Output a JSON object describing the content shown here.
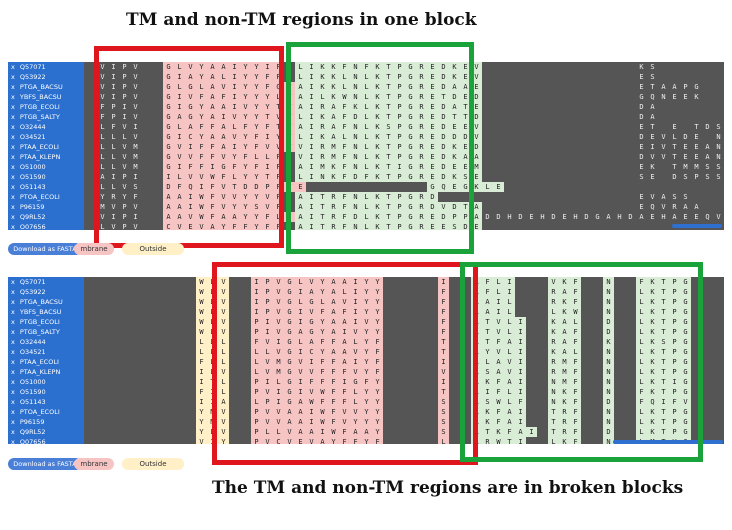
{
  "titles": {
    "top": "TM and non-TM regions in one block",
    "bottom": "The TM and non-TM regions are in broken blocks"
  },
  "accessions": [
    "Q57071",
    "Q53922",
    "PTGA_BACSU",
    "YBFS_BACSU",
    "PTGB_ECOLI",
    "PTGB_SALTY",
    "O32444",
    "O34521",
    "PTAA_ECOLI",
    "PTAA_KLEPN",
    "O51000",
    "O51590",
    "O51143",
    "PTOA_ECOLI",
    "P96159",
    "Q9RL52",
    "O07656"
  ],
  "row_marker": "x",
  "download_label": "Download as FASTA",
  "legend": {
    "membrane": "mbrane",
    "outside": "Outside"
  },
  "colors": {
    "tm_highlight": "#e0161f",
    "non_tm_highlight": "#19a33a",
    "tm_fill": "#f7c4c4",
    "outside_fill": "#d9ecd6",
    "membrane_fill": "#fff0c8",
    "name_column": "#2b6fcf"
  },
  "top_block": {
    "lead": [
      "VIPV",
      "VIPV",
      "VIPV",
      "VIPV",
      "FPIV",
      "FPIV",
      "LFVI",
      "LLLV",
      "LLVM",
      "LLVM",
      "LLVM",
      "AIPI",
      "LLVS",
      "YRYF",
      "MVPV",
      "VIPI",
      "LVPV"
    ],
    "tm": [
      "GLVYAAIYYIF",
      "GIAYALIYYFF",
      "GLGLAVIYYFGF",
      "GIVFAFIYYYLF",
      "GIGYAAIVYYTF",
      "GAGYAIVYYTVF",
      "GLAFFALFYFTF",
      "GICYAAVYFIYF",
      "GVIFFAIYFVVF",
      "GVVFFVYFLLF",
      "GIFFIGFYFIF",
      "ILVVWFLYYTF",
      "DFQIFVTDDPFFE",
      "AAIWFVVYYVF",
      "AAIWFVYYSVF",
      "AAVWFAAYYFLF",
      "CVEVAYFFYFF"
    ],
    "outside": [
      "LIKKFNFKTPGREDKEV",
      "LIKKLNLKTPGREDKEV",
      "AIKKLNLKTPGREDAAE",
      "AILKWNLKTPGRETDED",
      "AIRAFKLKTPGREDATE",
      "LIKAFDLKTPGREDTTD",
      "AIRAFNLKSPGREDEEV",
      "LIKALNLKTPGREDDDV",
      "VIRMFNLKTPGREDKED",
      "VIRMFNLKTPGREDKAA",
      "AIMKFNLKTIGREDEEM",
      "LINKFDFKTPGREDKSE",
      "GQEGKLE",
      "AITRFNLKTPGRD",
      "AITRFNLKTPGRDVDTA",
      "AITRFDLKTPGREDPPA",
      "AITRFNLKTPGREESDE"
    ],
    "tail": [
      "KS",
      "ES",
      "ETAAPG",
      "GQNEEK",
      "DA",
      "DA",
      "ET E TDS",
      "DEVLDE NTV",
      "EIVTEEANSN",
      "DVVTEEANSN",
      "EK TMMSSE",
      "SE DSPSSK",
      "",
      "EVASS",
      "EQVRAA",
      "DDHDEHDEHDGAHDAEHAEEQVRAA",
      ""
    ]
  },
  "bottom_block": {
    "lead": [
      "WLV",
      "WLV",
      "WLV",
      "WLV",
      "WLV",
      "WLV",
      "LLL",
      "LLL",
      "FLL",
      "ILV",
      "ITL",
      "FIL",
      "IIA",
      "YMV",
      "YMV",
      "YLV",
      "VIY"
    ],
    "tm": [
      "IPVGLVYAAIYY",
      "IPVGIAYALIYY",
      "IPVGLGLAVIYY",
      "IPVGIVFAFIYY",
      "PIVGIGYAAIVY",
      "PIVGAGYAIVYY",
      "FVIGLAFFALYF",
      "LLVGICYAAVYF",
      "LVMGVIFFAIYF",
      "LVMGVVFFFVYF",
      "PILGIFFFIGFY",
      "PVIGIVWFFLYY",
      "LPIGAWFFFLYY",
      "PVVAAIWFVVYY",
      "PVVAAIWFVYYY",
      "PLLVAAIWFAAY",
      "PVCVEVAYFFYF"
    ],
    "mark": [
      "I",
      "F",
      "F",
      "F",
      "F",
      "F",
      "T",
      "T",
      "I",
      "V",
      "I",
      "T",
      "S",
      "S",
      "S",
      "S",
      "L"
    ],
    "out1": [
      "RFLI",
      "RFLI",
      "RAIL",
      "RAIL",
      "RTVLI",
      "RTVLI",
      "RTFAI",
      "RYVLI",
      "RLAVI",
      "RSAVI",
      "RKFAI",
      "RIFLI",
      "RSWLF",
      "RKFAI",
      "RKFAI",
      "RTKFAI",
      "RRWTI"
    ],
    "out2": [
      "VKF",
      "RAF",
      "RKF",
      "LKW",
      "KAL",
      "KAF",
      "RAF",
      "KAL",
      "RMF",
      "RMF",
      "NMF",
      "NKF",
      "NKF",
      "TRF",
      "TRF",
      "TRF",
      "LKF"
    ],
    "out3": [
      "N",
      "N",
      "N",
      "N",
      "D",
      "D",
      "K",
      "N",
      "N",
      "N",
      "N",
      "N",
      "D",
      "N",
      "N",
      "D",
      "N"
    ],
    "out4": [
      "FKTPG",
      "LKTPG",
      "LKTPG",
      "LKTPG",
      "LKTPG",
      "LKTPG",
      "LKSPG",
      "LKTPG",
      "LKTPG",
      "LKTPG",
      "LKTIG",
      "FKTPG",
      "FQIFV",
      "LKTPG",
      "LKTPG",
      "LKTPG",
      "LMTVG"
    ]
  }
}
